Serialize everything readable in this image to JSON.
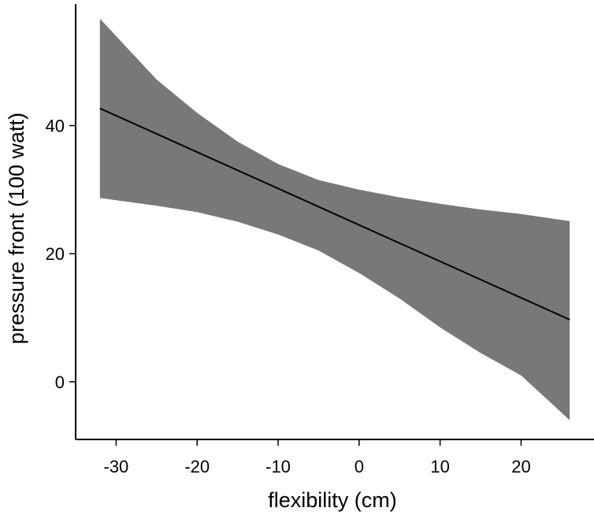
{
  "chart_data": {
    "type": "line",
    "xlabel": "flexibility (cm)",
    "ylabel": "pressure front (100 watt)",
    "xlim": [
      -35,
      29
    ],
    "ylim": [
      -9,
      59
    ],
    "x_ticks": [
      -30,
      -20,
      -10,
      0,
      10,
      20
    ],
    "y_ticks": [
      0,
      20,
      40
    ],
    "x_tick_labels": [
      "-30",
      "-20",
      "-10",
      "0",
      "10",
      "20"
    ],
    "y_tick_labels": [
      "0",
      "20",
      "40"
    ],
    "grid": false,
    "legend": "none",
    "series": [
      {
        "x": [
          -32,
          26
        ],
        "values": [
          42.7,
          9.7
        ]
      }
    ],
    "confidence_band": {
      "x": [
        -32,
        -25,
        -20,
        -15,
        -10,
        -5,
        0,
        5,
        10,
        15,
        20,
        26
      ],
      "upper": [
        56.7,
        47.2,
        42.0,
        37.5,
        34.0,
        31.5,
        30.0,
        28.8,
        27.8,
        26.9,
        26.2,
        25.1
      ],
      "lower": [
        28.7,
        27.5,
        26.5,
        25.0,
        23.0,
        20.5,
        17.0,
        13.0,
        8.5,
        4.5,
        1.0,
        -6.0
      ]
    },
    "colors": {
      "band": "#787878",
      "line": "#000000",
      "axis": "#000000"
    }
  }
}
